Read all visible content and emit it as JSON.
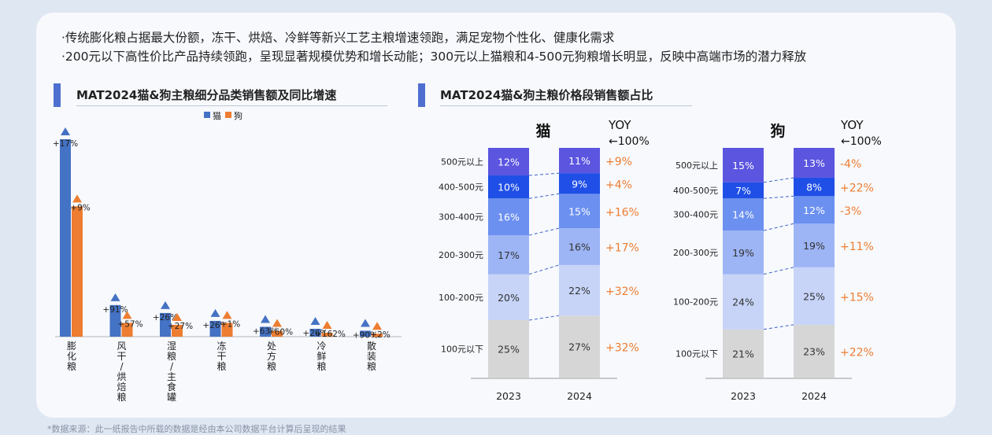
{
  "bullets": [
    "·传统膨化粮占据最大份额，冻干、烘焙、冷鲜等新兴工艺主粮增速领跑，满足宠物个性化、健康化需求",
    "·200元以下高性价比产品持续领跑，呈现显著规模优势和增长动能；300元以上猫粮和4-500元狗粮增长明显，反映中高端市场的潜力释放"
  ],
  "left_title": "MAT2024猫&狗主粮细分品类销售额及同比增速",
  "right_title": "MAT2024猫&狗主粮价格段销售额占比",
  "footnote": "*数据来源：此一纸报告中所载的数据是经由本公司数据平台计算后呈现的结果",
  "colors": {
    "cat": "#4472c4",
    "dog": "#ed7d31",
    "growth": "#ed7d31"
  },
  "chart_data": [
    {
      "type": "bar",
      "title": "MAT2024猫&狗主粮细分品类销售额及同比增速",
      "legend_position": "top-center",
      "categories": [
        "膨化粮",
        "风干/烘焙粮",
        "湿粮/主食罐",
        "冻干粮",
        "处方粮",
        "冷鲜粮",
        "散装粮"
      ],
      "category_labels": [
        "膨\n化\n粮",
        "风\n干\n/\n烘\n焙\n粮",
        "湿\n粮\n/\n主\n食\n罐",
        "冻\n干\n粮",
        "处\n方\n粮",
        "冷\n鲜\n粮",
        "散\n装\n粮"
      ],
      "series": [
        {
          "name": "猫",
          "values": [
            100,
            16,
            12,
            8,
            5,
            4,
            3
          ],
          "growth_labels": [
            "+17%",
            "+91%",
            "+26%",
            "+26%",
            "+63%",
            "+26%",
            "+90%"
          ]
        },
        {
          "name": "狗",
          "values": [
            66,
            7,
            6,
            7,
            3,
            2,
            1.5
          ],
          "growth_labels": [
            "+9%",
            "+57%",
            "+27%",
            "+1%",
            "+60%",
            "+162%",
            "+2%"
          ]
        }
      ],
      "ylim": [
        0,
        100
      ]
    },
    {
      "type": "bar",
      "stacked": true,
      "normalized": true,
      "title": "猫",
      "yoy_header": [
        "YOY",
        "←100%"
      ],
      "categories": [
        "2023",
        "2024"
      ],
      "segments": [
        "100元以下",
        "100-200元",
        "200-300元",
        "300-400元",
        "400-500元",
        "500元以上"
      ],
      "values_2023": [
        25,
        20,
        17,
        16,
        10,
        12
      ],
      "values_2024": [
        27,
        22,
        16,
        15,
        9,
        11
      ],
      "labels_2023": [
        "25%",
        "20%",
        "17%",
        "16%",
        "10%",
        "12%"
      ],
      "labels_2024": [
        "27%",
        "22%",
        "16%",
        "15%",
        "9%",
        "11%"
      ],
      "yoy": [
        "+32%",
        "+32%",
        "+17%",
        "+16%",
        "+4%",
        "+9%"
      ]
    },
    {
      "type": "bar",
      "stacked": true,
      "normalized": true,
      "title": "狗",
      "yoy_header": [
        "YOY",
        "←100%"
      ],
      "categories": [
        "2023",
        "2024"
      ],
      "segments": [
        "100元以下",
        "100-200元",
        "200-300元",
        "300-400元",
        "400-500元",
        "500元以上"
      ],
      "values_2023": [
        21,
        24,
        19,
        14,
        7,
        15
      ],
      "values_2024": [
        23,
        25,
        19,
        12,
        8,
        13
      ],
      "labels_2023": [
        "21%",
        "24%",
        "19%",
        "14%",
        "7%",
        "15%"
      ],
      "labels_2024": [
        "23%",
        "25%",
        "19%",
        "12%",
        "8%",
        "13%"
      ],
      "yoy": [
        "+22%",
        "+15%",
        "+11%",
        "-3%",
        "+22%",
        "-4%"
      ]
    }
  ],
  "segment_colors": [
    "#d6d6d6",
    "#c7d4f8",
    "#9db5f5",
    "#6b90f0",
    "#1f4fe6",
    "#5b55e0"
  ]
}
